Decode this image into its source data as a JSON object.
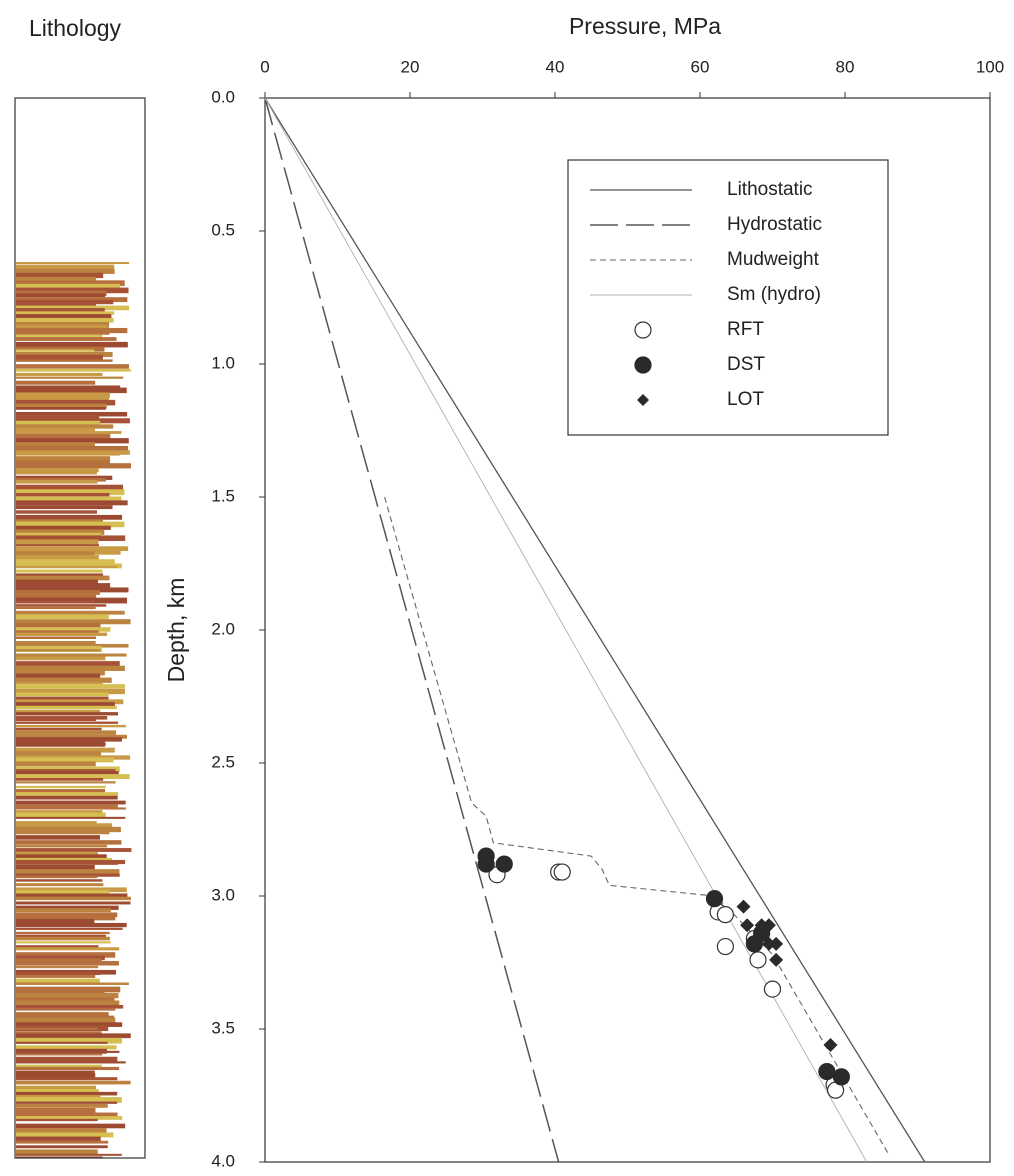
{
  "lithology": {
    "title": "Lithology"
  },
  "chart_data": {
    "type": "line",
    "xlabel": "Pressure, MPa",
    "ylabel": "Depth, km",
    "xlim": [
      0,
      100
    ],
    "xticks": [
      0,
      20,
      40,
      60,
      80,
      100
    ],
    "ylim": [
      0,
      4
    ],
    "y_inverted": true,
    "yticks": [
      {
        "value": 0,
        "label": "0.0"
      },
      0.5,
      {
        "value": 1,
        "label": "1.0"
      },
      1.5,
      {
        "value": 2,
        "label": "2.0"
      },
      2.5,
      {
        "value": 3,
        "label": "3.0"
      },
      3.5,
      {
        "value": 4,
        "label": "4.0"
      }
    ],
    "legend": "upper right",
    "series": [
      {
        "name": "Lithostatic",
        "kind": "line",
        "style": "solid",
        "color": "#555555",
        "pressure": [
          0,
          91
        ],
        "depth": [
          0,
          4
        ]
      },
      {
        "name": "Hydrostatic",
        "kind": "line",
        "style": "long-dash",
        "color": "#555555",
        "pressure": [
          0,
          40.5
        ],
        "depth": [
          0,
          4
        ]
      },
      {
        "name": "Mudweight",
        "kind": "line",
        "style": "short-dash",
        "color": "#666666",
        "pressure": [
          16.5,
          28.5,
          30.5,
          31.5,
          45,
          46.5,
          47.5,
          62,
          64,
          70,
          86
        ],
        "depth": [
          1.5,
          2.65,
          2.7,
          2.8,
          2.85,
          2.9,
          2.96,
          3.0,
          3.05,
          3.22,
          3.97
        ]
      },
      {
        "name": "Sm (hydro)",
        "kind": "line",
        "style": "thin",
        "color": "#b0b0b0",
        "pressure": [
          0,
          83
        ],
        "depth": [
          0,
          4
        ]
      },
      {
        "name": "RFT",
        "kind": "scatter",
        "marker": "open-circle",
        "color": "#333333",
        "pressure": [
          32,
          40.5,
          41,
          62.5,
          63.5,
          63.5,
          67.5,
          68,
          70,
          78.5,
          78.7
        ],
        "depth": [
          2.92,
          2.91,
          2.91,
          3.06,
          3.07,
          3.19,
          3.16,
          3.24,
          3.35,
          3.71,
          3.73
        ]
      },
      {
        "name": "DST",
        "kind": "scatter",
        "marker": "filled-circle",
        "color": "#2a2a2a",
        "pressure": [
          30.5,
          30.5,
          33,
          62,
          67.5,
          68.5,
          77.5,
          79.5
        ],
        "depth": [
          2.85,
          2.88,
          2.88,
          3.01,
          3.18,
          3.14,
          3.66,
          3.68
        ]
      },
      {
        "name": "LOT",
        "kind": "scatter",
        "marker": "diamond",
        "color": "#2a2a2a",
        "pressure": [
          66,
          66.5,
          68.5,
          69.5,
          69.5,
          70.5,
          70.5,
          78
        ],
        "depth": [
          3.04,
          3.11,
          3.11,
          3.11,
          3.18,
          3.18,
          3.24,
          3.56
        ]
      }
    ]
  }
}
